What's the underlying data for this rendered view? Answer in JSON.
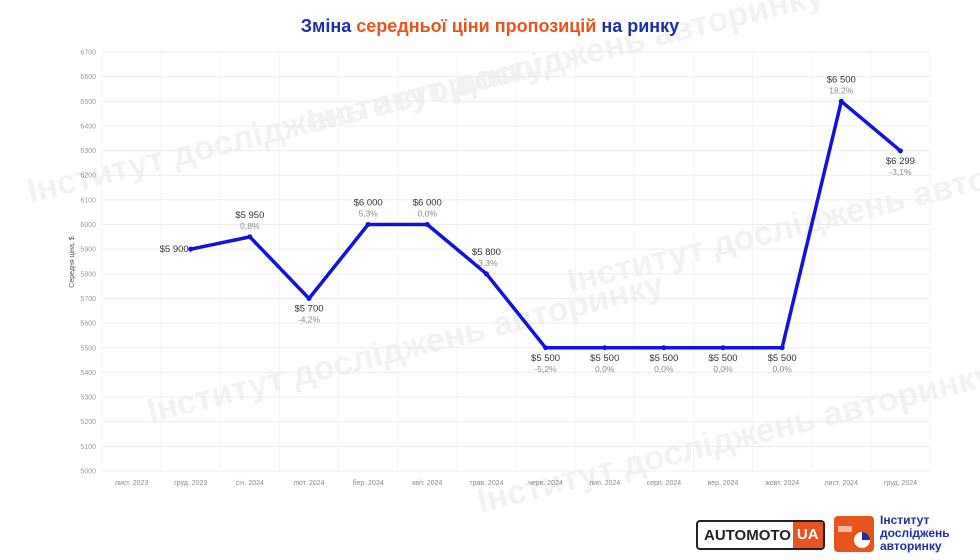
{
  "title": {
    "part1": "Зміна ",
    "part2": "середньої ціни пропозицій",
    "part3": " на ринку"
  },
  "colors": {
    "line": "#1111e0",
    "title_blue": "#1f2fa8",
    "title_orange": "#e8541e"
  },
  "watermark_text": "Інститут досліджень авторинку",
  "logos": {
    "automoto_main": "AUTOMOTO",
    "automoto_suffix": "UA",
    "institute_line1": "Інститут",
    "institute_line2": "досліджень",
    "institute_line3": "авторинку"
  },
  "chart_data": {
    "type": "line",
    "ylabel": "Середня ціна, $",
    "ylim": [
      5000,
      6700
    ],
    "yticks": [
      5000,
      5100,
      5200,
      5300,
      5400,
      5500,
      5600,
      5700,
      5800,
      5900,
      6000,
      6100,
      6200,
      6300,
      6400,
      6500,
      6600,
      6700
    ],
    "categories": [
      "лист. 2023",
      "груд. 2023",
      "січ. 2024",
      "лют. 2024",
      "бер. 2024",
      "квіт. 2024",
      "трав. 2024",
      "черв. 2024",
      "лип. 2024",
      "серп. 2024",
      "вер. 2024",
      "жовт. 2024",
      "лист. 2024",
      "груд. 2024"
    ],
    "values": [
      null,
      5900,
      5950,
      5700,
      6000,
      6000,
      5800,
      5500,
      5500,
      5500,
      5500,
      5500,
      6500,
      6299
    ],
    "value_labels": [
      "",
      "$5 900",
      "$5 950",
      "$5 700",
      "$6 000",
      "$6 000",
      "$5 800",
      "$5 500",
      "$5 500",
      "$5 500",
      "$5 500",
      "$5 500",
      "$6 500",
      "$6 299"
    ],
    "pct_labels": [
      "",
      "",
      "0,8%",
      "-4,2%",
      "5,3%",
      "0,0%",
      "-3,3%",
      "-5,2%",
      "0,0%",
      "0,0%",
      "0,0%",
      "0,0%",
      "18,2%",
      "-3,1%"
    ],
    "label_position": [
      "",
      "left",
      "above",
      "below",
      "above",
      "above",
      "above",
      "below",
      "below",
      "below",
      "below",
      "below",
      "above",
      "below"
    ],
    "grid": true
  }
}
